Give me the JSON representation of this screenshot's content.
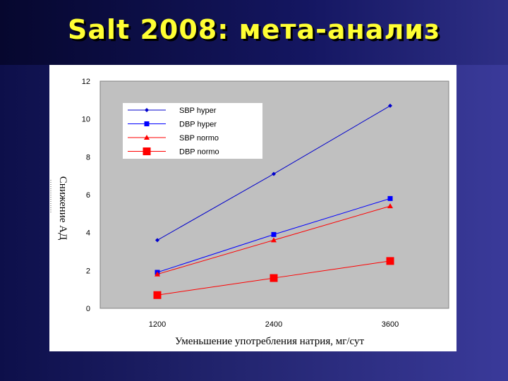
{
  "slide": {
    "title": "Salt 2008: мета-анализ"
  },
  "chart_data": {
    "type": "line",
    "title": "",
    "xlabel": "Уменьшение употребления натрия, мг/сут",
    "ylabel": "Снижение АД",
    "categories": [
      "1200",
      "2400",
      "3600"
    ],
    "ylim": [
      0,
      12
    ],
    "yticks": [
      0,
      2,
      4,
      6,
      8,
      10,
      12
    ],
    "grid": false,
    "legend_position": "top-left",
    "plot_background": "#c0c0c0",
    "series": [
      {
        "name": "SBP hyper",
        "values": [
          3.6,
          7.1,
          10.7
        ],
        "color": "#0000cc",
        "marker": "diamond"
      },
      {
        "name": "DBP hyper",
        "values": [
          1.9,
          3.9,
          5.8
        ],
        "color": "#0000ff",
        "marker": "square"
      },
      {
        "name": "SBP normo",
        "values": [
          1.8,
          3.6,
          5.4
        ],
        "color": "#ff0000",
        "marker": "triangle"
      },
      {
        "name": "DBP normo",
        "values": [
          0.7,
          1.6,
          2.5
        ],
        "color": "#ff0000",
        "marker": "bigsquare"
      }
    ]
  }
}
